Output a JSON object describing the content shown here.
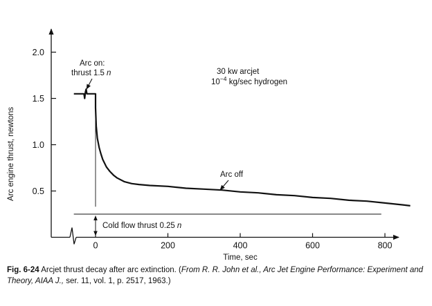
{
  "caption": {
    "figure_number": "Fig. 6-24",
    "text": "Arcjet thrust decay after arc extinction.",
    "citation_open": "(",
    "citation_italic": "From R. R. John et al., Arc Jet Engine Performance: Experiment and Theory, AIAA J., ",
    "citation_series": "ser. 11, vol. 1, p. 2517, 1963.)"
  },
  "chart_data": {
    "type": "line",
    "title": "",
    "xlabel": "Time, sec",
    "ylabel": "Arc engine thrust, newtons",
    "xlim": [
      -60,
      880
    ],
    "ylim": [
      -0.45,
      2.3
    ],
    "x_ticks": [
      "0",
      "200",
      "400",
      "600",
      "800"
    ],
    "y_ticks": [
      "0.5",
      "1.0",
      "1.5",
      "2.0"
    ],
    "grid": false,
    "series": [
      {
        "x": [
          -60,
          -32,
          -30,
          -28,
          -26,
          -24,
          0,
          0,
          2,
          5,
          10,
          15,
          20,
          30,
          40,
          50,
          60,
          80,
          100,
          120,
          150,
          200,
          250,
          300,
          350,
          400,
          450,
          500,
          550,
          600,
          650,
          700,
          750,
          800,
          850,
          870
        ],
        "y": [
          1.55,
          1.55,
          1.5,
          1.57,
          1.6,
          1.55,
          1.55,
          1.4,
          1.2,
          1.07,
          0.97,
          0.9,
          0.84,
          0.76,
          0.71,
          0.67,
          0.64,
          0.6,
          0.58,
          0.57,
          0.56,
          0.55,
          0.53,
          0.52,
          0.51,
          0.49,
          0.48,
          0.46,
          0.45,
          0.43,
          0.42,
          0.4,
          0.39,
          0.37,
          0.35,
          0.34
        ]
      }
    ],
    "reference_line": {
      "y": 0.25,
      "x_from": -60,
      "x_to": 790
    },
    "annotations": {
      "arc_on_line1": "Arc on:",
      "arc_on_line2": "thrust 1.5",
      "arc_on_unit": "n",
      "conditions_line1": "30 kw arcjet",
      "conditions_line2_base": "10",
      "conditions_line2_exp": "−4",
      "conditions_line2_rest": " kg/sec hydrogen",
      "arc_off": "Arc off",
      "cold_flow_text": "Cold flow thrust 0.25",
      "cold_flow_unit": "n"
    }
  }
}
